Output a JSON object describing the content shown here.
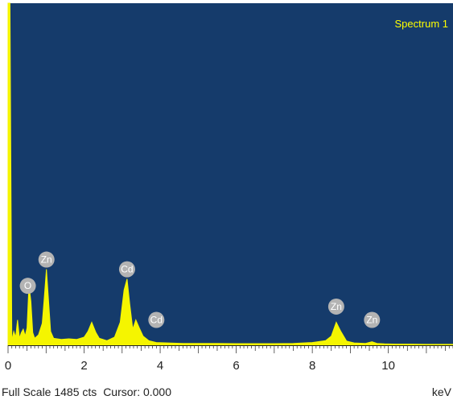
{
  "chart_data": {
    "type": "line",
    "title": "Spectrum 1",
    "xlabel": "keV",
    "xlim": [
      0,
      11.7
    ],
    "x_ticks": [
      "0",
      "2",
      "4",
      "6",
      "8",
      "10"
    ],
    "full_scale_cts": 1485,
    "series": [
      {
        "x": [
          0.0,
          0.05,
          0.1,
          0.15,
          0.2,
          0.25,
          0.3,
          0.35,
          0.4,
          0.45,
          0.5,
          0.55,
          0.6,
          0.65,
          0.7,
          0.8,
          0.9,
          0.95,
          1.01,
          1.07,
          1.12,
          1.2,
          1.4,
          1.6,
          1.8,
          2.0,
          2.1,
          2.2,
          2.31,
          2.4,
          2.5,
          2.6,
          2.8,
          2.95,
          3.05,
          3.13,
          3.2,
          3.28,
          3.36,
          3.45,
          3.55,
          3.7,
          3.9,
          4.2,
          4.6,
          5.0,
          5.5,
          6.0,
          6.5,
          7.0,
          7.5,
          8.0,
          8.35,
          8.5,
          8.63,
          8.75,
          8.9,
          9.1,
          9.4,
          9.57,
          9.7,
          9.9,
          10.2,
          10.6,
          11.0,
          11.7
        ],
        "y": [
          1485,
          1485,
          20,
          60,
          35,
          110,
          30,
          55,
          70,
          40,
          75,
          260,
          190,
          55,
          30,
          45,
          95,
          200,
          330,
          180,
          60,
          30,
          25,
          28,
          25,
          35,
          60,
          100,
          55,
          30,
          25,
          20,
          35,
          100,
          240,
          288,
          180,
          70,
          110,
          75,
          40,
          20,
          12,
          10,
          8,
          8,
          8,
          7,
          7,
          7,
          8,
          12,
          20,
          40,
          100,
          60,
          18,
          10,
          8,
          15,
          8,
          6,
          5,
          5,
          4,
          4
        ]
      }
    ],
    "peak_labels": [
      {
        "text": "O",
        "x": 0.52,
        "y": 216
      },
      {
        "text": "Zn",
        "x": 1.01,
        "y": 330
      },
      {
        "text": "Cd",
        "x": 3.13,
        "y": 288
      },
      {
        "text": "Cd",
        "x": 3.9,
        "y": 68
      },
      {
        "text": "Zn",
        "x": 8.63,
        "y": 126
      },
      {
        "text": "Zn",
        "x": 9.57,
        "y": 68
      }
    ]
  },
  "status_bar": {
    "full_scale": "Full Scale 1485 cts",
    "cursor": "Cursor: 0.000"
  },
  "colors": {
    "plot_background": "#153b6b",
    "spectrum_fill": "#f5f500",
    "label_circle": "#b3b3b3",
    "axis_line": "#222222",
    "title_color": "#ffff00"
  }
}
